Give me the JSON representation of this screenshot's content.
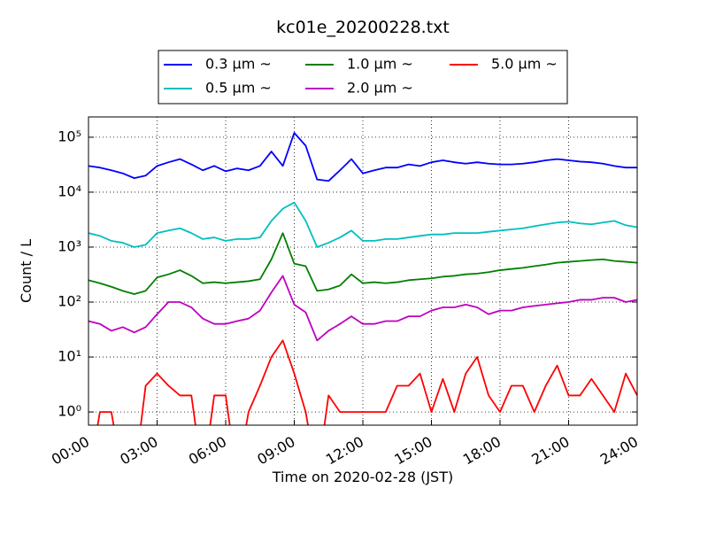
{
  "chart_data": {
    "type": "line",
    "title": "kc01e_20200228.txt",
    "x_label": "Time on 2020-02-28 (JST)",
    "y_label": "Count / L",
    "log_y": true,
    "grid": true,
    "legend": "top",
    "x": [
      0,
      0.5,
      1,
      1.5,
      2,
      2.5,
      3,
      3.5,
      4,
      4.5,
      5,
      5.5,
      6,
      6.5,
      7,
      7.5,
      8,
      8.5,
      9,
      9.5,
      10,
      10.5,
      11,
      11.5,
      12,
      12.5,
      13,
      13.5,
      14,
      14.5,
      15,
      15.5,
      16,
      16.5,
      17,
      17.5,
      18,
      18.5,
      19,
      19.5,
      20,
      20.5,
      21,
      21.5,
      22,
      22.5,
      23,
      23.5,
      24
    ],
    "xlim": [
      0,
      24
    ],
    "xticks": [
      {
        "value": 0,
        "label": "00:00"
      },
      {
        "value": 3,
        "label": "03:00"
      },
      {
        "value": 6,
        "label": "06:00"
      },
      {
        "value": 9,
        "label": "09:00"
      },
      {
        "value": 12,
        "label": "12:00"
      },
      {
        "value": 15,
        "label": "15:00"
      },
      {
        "value": 18,
        "label": "18:00"
      },
      {
        "value": 21,
        "label": "21:00"
      },
      {
        "value": 24,
        "label": "24:00"
      }
    ],
    "ylim": [
      0.575,
      234000
    ],
    "yticks": [
      {
        "value": 1,
        "label": "10⁰"
      },
      {
        "value": 10,
        "label": "10¹"
      },
      {
        "value": 100,
        "label": "10²"
      },
      {
        "value": 1000,
        "label": "10³"
      },
      {
        "value": 10000,
        "label": "10⁴"
      },
      {
        "value": 100000,
        "label": "10⁵"
      }
    ],
    "series": [
      {
        "name": "0.3 μm ~",
        "color": "#0000ff",
        "values": [
          30000,
          28000,
          25000,
          22000,
          18000,
          20000,
          30000,
          35000,
          40000,
          32000,
          25000,
          30000,
          24000,
          27000,
          25000,
          30000,
          55000,
          30000,
          120000,
          70000,
          17000,
          16000,
          25000,
          40000,
          22000,
          25000,
          28000,
          28000,
          32000,
          30000,
          35000,
          38000,
          35000,
          33000,
          35000,
          33000,
          32000,
          32000,
          33000,
          35000,
          38000,
          40000,
          38000,
          36000,
          35000,
          33000,
          30000,
          28000,
          28000
        ]
      },
      {
        "name": "0.5 μm ~",
        "color": "#00bfbf",
        "values": [
          1800,
          1600,
          1300,
          1200,
          1000,
          1100,
          1800,
          2000,
          2200,
          1800,
          1400,
          1500,
          1300,
          1400,
          1400,
          1500,
          3000,
          5000,
          6500,
          3000,
          1000,
          1200,
          1500,
          2000,
          1300,
          1300,
          1400,
          1400,
          1500,
          1600,
          1700,
          1700,
          1800,
          1800,
          1800,
          1900,
          2000,
          2100,
          2200,
          2400,
          2600,
          2800,
          2900,
          2700,
          2600,
          2800,
          3000,
          2500,
          2300
        ]
      },
      {
        "name": "1.0 μm ~",
        "color": "#008000",
        "values": [
          250,
          220,
          190,
          160,
          140,
          160,
          280,
          320,
          380,
          300,
          220,
          230,
          220,
          230,
          240,
          260,
          600,
          1800,
          500,
          450,
          160,
          170,
          200,
          320,
          220,
          230,
          220,
          230,
          250,
          260,
          270,
          290,
          300,
          320,
          330,
          350,
          380,
          400,
          420,
          450,
          480,
          520,
          540,
          560,
          580,
          600,
          560,
          540,
          520
        ]
      },
      {
        "name": "2.0 μm ~",
        "color": "#bf00bf",
        "values": [
          45,
          40,
          30,
          35,
          28,
          35,
          60,
          100,
          100,
          80,
          50,
          40,
          40,
          45,
          50,
          70,
          150,
          300,
          90,
          65,
          20,
          30,
          40,
          55,
          40,
          40,
          45,
          45,
          55,
          55,
          70,
          80,
          80,
          90,
          80,
          60,
          70,
          70,
          80,
          85,
          90,
          95,
          100,
          110,
          110,
          120,
          120,
          100,
          110
        ]
      },
      {
        "name": "5.0 μm ~",
        "color": "#ff0000",
        "values": [
          0,
          1,
          1,
          0,
          0,
          3,
          5,
          3,
          2,
          2,
          0,
          2,
          2,
          0,
          1,
          3,
          10,
          20,
          5,
          1,
          0,
          2,
          1,
          1,
          1,
          1,
          1,
          3,
          3,
          5,
          1,
          4,
          1,
          5,
          10,
          2,
          1,
          3,
          3,
          1,
          3,
          7,
          2,
          2,
          4,
          2,
          1,
          5,
          2
        ]
      }
    ]
  }
}
